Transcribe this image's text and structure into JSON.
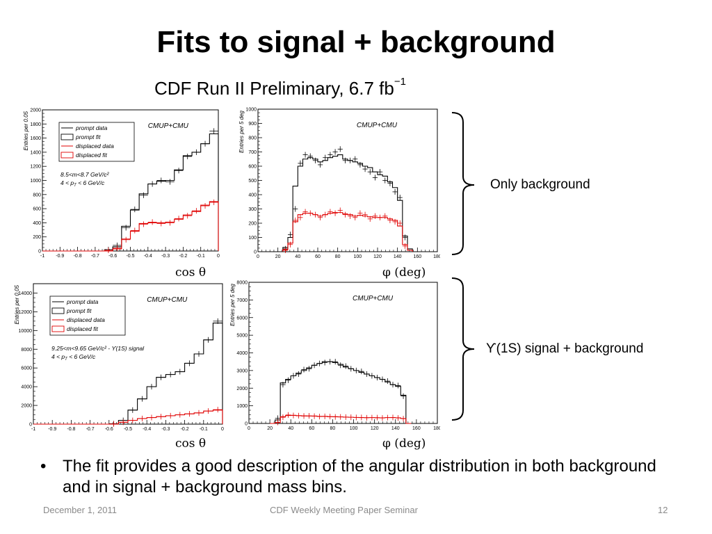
{
  "slide": {
    "title": "Fits to signal + background",
    "subtitle_main": "CDF Run II  Preliminary, 6.7 fb",
    "subtitle_sup": "−1",
    "top_group_label": "Only background",
    "bottom_group_label": "ϒ(1S) signal + background",
    "bullet": "The fit provides a good description of the angular distribution in both background and in signal + background mass bins.",
    "footer_left": "December 1, 2011",
    "footer_center": "CDF Weekly Meeting Paper Seminar",
    "footer_right": "12"
  },
  "chart_data": [
    {
      "type": "histogram",
      "id": "costheta-bkg",
      "tag": "CMUP+CMU",
      "ylabel": "Entries per 0.05",
      "xunit": "cos  θ",
      "xlim": [
        -1,
        0
      ],
      "ylim": [
        0,
        2000
      ],
      "xticks": [
        -1,
        -0.9,
        -0.8,
        -0.7,
        -0.6,
        -0.5,
        -0.4,
        -0.3,
        -0.2,
        -0.1,
        0
      ],
      "yticks": [
        0,
        200,
        400,
        600,
        800,
        1000,
        1200,
        1400,
        1600,
        1800,
        2000
      ],
      "info": [
        "8.5<m<8.7 GeV/c²",
        "4 < p_T < 6 GeV/c"
      ],
      "legend": [
        "prompt data",
        "prompt fit",
        "displaced data",
        "displaced fit"
      ],
      "bin_edges": [
        -1.0,
        -0.95,
        -0.9,
        -0.85,
        -0.8,
        -0.75,
        -0.7,
        -0.65,
        -0.6,
        -0.55,
        -0.5,
        -0.45,
        -0.4,
        -0.35,
        -0.3,
        -0.25,
        -0.2,
        -0.15,
        -0.1,
        -0.05,
        0.0
      ],
      "series": [
        {
          "name": "prompt fit",
          "style": "fit",
          "color": "#000000",
          "values": [
            0,
            0,
            0,
            0,
            0,
            0,
            0,
            0,
            60,
            350,
            580,
            810,
            950,
            990,
            1000,
            1150,
            1350,
            1400,
            1520,
            1660
          ]
        },
        {
          "name": "prompt data",
          "style": "data",
          "color": "#000000",
          "values": [
            0,
            0,
            0,
            0,
            0,
            0,
            0,
            20,
            80,
            330,
            590,
            790,
            950,
            1000,
            980,
            1140,
            1340,
            1400,
            1520,
            1700
          ]
        },
        {
          "name": "displaced fit",
          "style": "fit",
          "color": "#e00000",
          "values": [
            0,
            0,
            0,
            0,
            0,
            0,
            0,
            0,
            30,
            170,
            280,
            390,
            400,
            400,
            410,
            450,
            510,
            560,
            650,
            700
          ]
        },
        {
          "name": "displaced data",
          "style": "data",
          "color": "#e00000",
          "values": [
            0,
            0,
            0,
            0,
            0,
            0,
            0,
            10,
            40,
            160,
            290,
            380,
            410,
            390,
            400,
            460,
            500,
            570,
            640,
            690
          ]
        }
      ]
    },
    {
      "type": "histogram",
      "id": "phi-bkg",
      "tag": "CMUP+CMU",
      "ylabel": "Entries per 5 deg",
      "xunit": "φ  (deg)",
      "xlim": [
        0,
        180
      ],
      "ylim": [
        0,
        1000
      ],
      "xticks": [
        0,
        20,
        40,
        60,
        80,
        100,
        120,
        140,
        160,
        180
      ],
      "yticks": [
        0,
        100,
        200,
        300,
        400,
        500,
        600,
        700,
        800,
        900,
        1000
      ],
      "legend": [],
      "bin_edges": [
        25,
        30,
        35,
        40,
        45,
        50,
        55,
        60,
        65,
        70,
        75,
        80,
        85,
        90,
        95,
        100,
        105,
        110,
        115,
        120,
        125,
        130,
        135,
        140,
        145,
        150,
        155
      ],
      "series": [
        {
          "name": "prompt fit",
          "style": "fit",
          "color": "#000000",
          "values": [
            30,
            100,
            460,
            600,
            650,
            660,
            650,
            630,
            640,
            660,
            670,
            680,
            650,
            640,
            630,
            620,
            600,
            590,
            560,
            540,
            530,
            490,
            450,
            360,
            110,
            20
          ]
        },
        {
          "name": "prompt data",
          "style": "data",
          "color": "#000000",
          "values": [
            20,
            120,
            300,
            620,
            680,
            670,
            640,
            610,
            660,
            680,
            700,
            720,
            640,
            640,
            650,
            610,
            580,
            560,
            520,
            560,
            500,
            480,
            420,
            380,
            100,
            0
          ]
        },
        {
          "name": "displaced fit",
          "style": "fit",
          "color": "#e00000",
          "values": [
            15,
            60,
            210,
            260,
            270,
            270,
            260,
            250,
            260,
            270,
            275,
            275,
            265,
            260,
            250,
            255,
            250,
            245,
            240,
            240,
            240,
            230,
            220,
            180,
            50,
            10
          ]
        },
        {
          "name": "displaced data",
          "style": "data",
          "color": "#e00000",
          "values": [
            10,
            50,
            220,
            240,
            280,
            270,
            260,
            240,
            260,
            280,
            270,
            290,
            260,
            250,
            240,
            270,
            260,
            230,
            250,
            240,
            250,
            220,
            210,
            200,
            40,
            0
          ]
        }
      ]
    },
    {
      "type": "histogram",
      "id": "costheta-sig",
      "tag": "CMUP+CMU",
      "ylabel": "Entries per 0.05",
      "xunit": "cos  θ",
      "xlim": [
        -1,
        0
      ],
      "ylim": [
        0,
        15000
      ],
      "xticks": [
        -1,
        -0.9,
        -0.8,
        -0.7,
        -0.6,
        -0.5,
        -0.4,
        -0.3,
        -0.2,
        -0.1,
        0
      ],
      "yticks": [
        0,
        2000,
        4000,
        6000,
        8000,
        10000,
        12000,
        14000
      ],
      "info": [
        "9.25<m<9.65 GeV/c² - ϒ(1S) signal",
        "4 < p_T < 6 GeV/c"
      ],
      "legend": [
        "prompt data",
        "prompt fit",
        "displaced data",
        "displaced fit"
      ],
      "bin_edges": [
        -1.0,
        -0.95,
        -0.9,
        -0.85,
        -0.8,
        -0.75,
        -0.7,
        -0.65,
        -0.6,
        -0.55,
        -0.5,
        -0.45,
        -0.4,
        -0.35,
        -0.3,
        -0.25,
        -0.2,
        -0.15,
        -0.1,
        -0.05,
        0.0
      ],
      "series": [
        {
          "name": "prompt fit",
          "style": "fit",
          "color": "#000000",
          "values": [
            0,
            0,
            0,
            0,
            0,
            0,
            0,
            0,
            0,
            400,
            1500,
            2700,
            4000,
            5000,
            5300,
            5600,
            6500,
            7500,
            9000,
            10800
          ]
        },
        {
          "name": "prompt data",
          "style": "data",
          "color": "#000000",
          "values": [
            0,
            0,
            0,
            0,
            0,
            0,
            0,
            0,
            50,
            400,
            1500,
            2700,
            4000,
            5000,
            5300,
            5600,
            6500,
            7500,
            9000,
            11000
          ]
        },
        {
          "name": "displaced fit",
          "style": "fit",
          "color": "#e00000",
          "values": [
            0,
            0,
            0,
            0,
            0,
            0,
            0,
            0,
            0,
            200,
            400,
            600,
            700,
            800,
            900,
            1000,
            1100,
            1200,
            1400,
            1500
          ]
        },
        {
          "name": "displaced data",
          "style": "data",
          "color": "#e00000",
          "values": [
            0,
            0,
            0,
            0,
            0,
            0,
            0,
            0,
            20,
            200,
            400,
            600,
            700,
            800,
            900,
            1000,
            1100,
            1200,
            1400,
            1550
          ]
        }
      ]
    },
    {
      "type": "histogram",
      "id": "phi-sig",
      "tag": "CMUP+CMU",
      "ylabel": "Entries per 5 deg",
      "xunit": "φ  (deg)",
      "xlim": [
        0,
        180
      ],
      "ylim": [
        0,
        8000
      ],
      "xticks": [
        0,
        20,
        40,
        60,
        80,
        100,
        120,
        140,
        160,
        180
      ],
      "yticks": [
        0,
        1000,
        2000,
        3000,
        4000,
        5000,
        6000,
        7000,
        8000
      ],
      "legend": [],
      "bin_edges": [
        20,
        25,
        30,
        35,
        40,
        45,
        50,
        55,
        60,
        65,
        70,
        75,
        80,
        85,
        90,
        95,
        100,
        105,
        110,
        115,
        120,
        125,
        130,
        135,
        140,
        145,
        150,
        155
      ],
      "series": [
        {
          "name": "prompt fit",
          "style": "fit",
          "color": "#000000",
          "values": [
            0,
            200,
            2300,
            2500,
            2700,
            2850,
            3000,
            3150,
            3300,
            3400,
            3500,
            3500,
            3450,
            3350,
            3200,
            3100,
            3000,
            2900,
            2800,
            2700,
            2600,
            2500,
            2350,
            2200,
            2100,
            1600,
            0
          ]
        },
        {
          "name": "prompt data",
          "style": "data",
          "color": "#000000",
          "values": [
            0,
            300,
            2200,
            2450,
            2700,
            2800,
            3050,
            3100,
            3300,
            3400,
            3450,
            3500,
            3500,
            3300,
            3250,
            3100,
            3000,
            2950,
            2800,
            2700,
            2600,
            2500,
            2400,
            2200,
            2150,
            1550,
            0
          ]
        },
        {
          "name": "displaced fit",
          "style": "fit",
          "color": "#e00000",
          "values": [
            0,
            50,
            380,
            450,
            460,
            440,
            430,
            420,
            420,
            400,
            400,
            380,
            380,
            370,
            360,
            350,
            340,
            330,
            330,
            330,
            320,
            320,
            330,
            330,
            320,
            280,
            0
          ]
        },
        {
          "name": "displaced data",
          "style": "data",
          "color": "#e00000",
          "values": [
            0,
            60,
            350,
            480,
            450,
            440,
            420,
            430,
            410,
            390,
            400,
            390,
            370,
            370,
            360,
            350,
            340,
            340,
            320,
            330,
            330,
            310,
            330,
            340,
            310,
            270,
            0
          ]
        }
      ]
    }
  ]
}
